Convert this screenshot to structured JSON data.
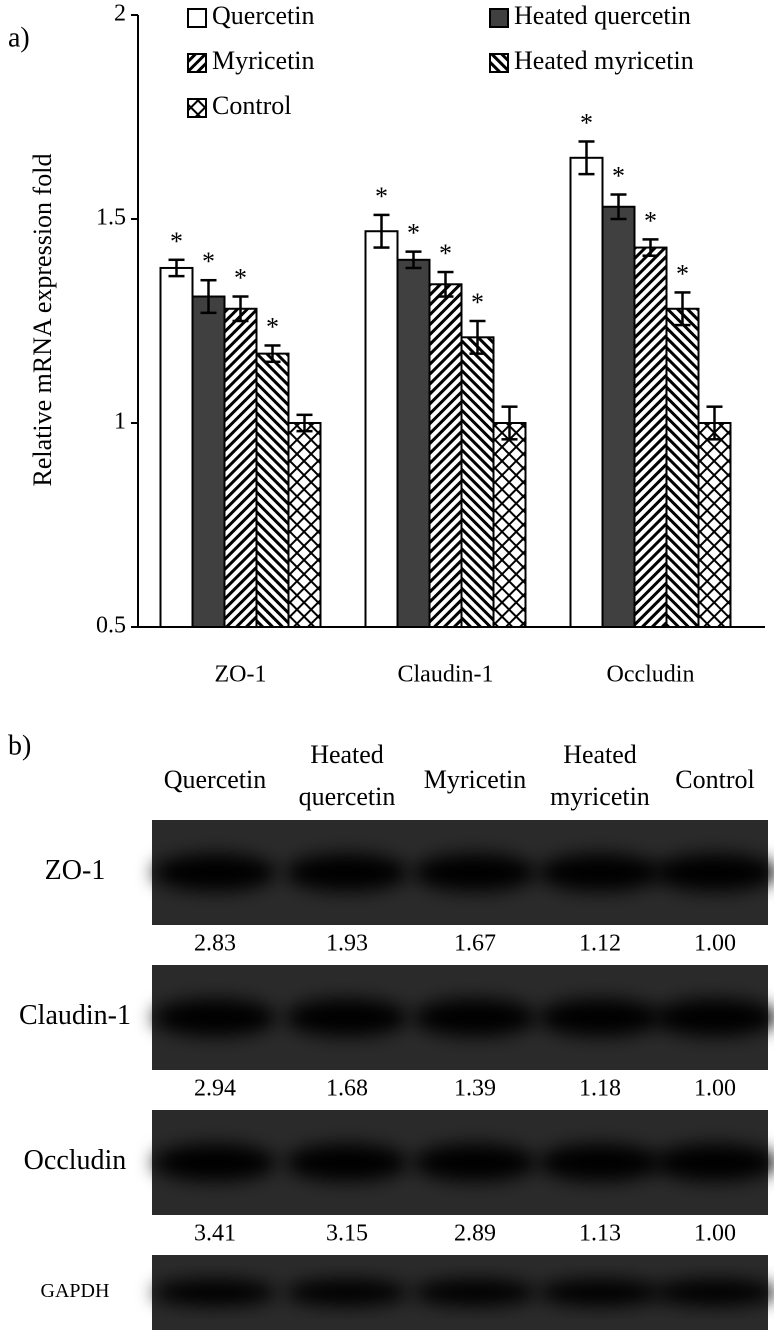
{
  "chart_data": {
    "type": "bar",
    "panel_label": "a)",
    "y_label": "Relative mRNA expression fold",
    "categories": [
      "ZO-1",
      "Claudin-1",
      "Occludin"
    ],
    "series": [
      {
        "name": "Quercetin",
        "color": "#ffffff",
        "pattern": "none",
        "values": [
          1.38,
          1.47,
          1.65
        ],
        "errors": [
          0.02,
          0.04,
          0.04
        ],
        "significance": [
          "*",
          "*",
          "*"
        ]
      },
      {
        "name": "Heated quercetin",
        "color": "#404040",
        "pattern": "none",
        "values": [
          1.31,
          1.4,
          1.53
        ],
        "errors": [
          0.04,
          0.02,
          0.03
        ],
        "significance": [
          "*",
          "*",
          "*"
        ]
      },
      {
        "name": "Myricetin",
        "color": "#ffffff",
        "pattern": "diagonal-right",
        "values": [
          1.28,
          1.34,
          1.43
        ],
        "errors": [
          0.03,
          0.03,
          0.02
        ],
        "significance": [
          "*",
          "*",
          "*"
        ]
      },
      {
        "name": "Heated myricetin",
        "color": "#ffffff",
        "pattern": "diagonal-left",
        "values": [
          1.17,
          1.21,
          1.28
        ],
        "errors": [
          0.02,
          0.04,
          0.04
        ],
        "significance": [
          "*",
          "*",
          "*"
        ]
      },
      {
        "name": "Control",
        "color": "#ffffff",
        "pattern": "crosshatch",
        "values": [
          1,
          1,
          1
        ],
        "errors": [
          0.02,
          0.04,
          0.04
        ]
      }
    ],
    "ylim": [
      0.5,
      2
    ],
    "yticks": [
      0.5,
      1,
      1.5,
      2
    ]
  },
  "blot": {
    "panel_label": "b)",
    "lanes": [
      [
        "Quercetin"
      ],
      [
        "Heated",
        "quercetin"
      ],
      [
        "Myricetin"
      ],
      [
        "Heated",
        "myricetin"
      ],
      [
        "Control"
      ]
    ],
    "rows": [
      {
        "name": "ZO-1",
        "quantities": [
          "2.83",
          "1.93",
          "1.67",
          "1.12",
          "1.00"
        ]
      },
      {
        "name": "Claudin-1",
        "quantities": [
          "2.94",
          "1.68",
          "1.39",
          "1.18",
          "1.00"
        ]
      },
      {
        "name": "Occludin",
        "quantities": [
          "3.41",
          "3.15",
          "2.89",
          "1.13",
          "1.00"
        ]
      },
      {
        "name": "GAPDH"
      }
    ]
  }
}
